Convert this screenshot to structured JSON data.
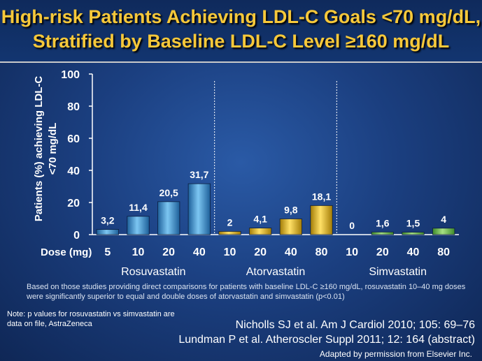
{
  "title": {
    "line1": "High-risk Patients Achieving LDL-C Goals <70 mg/dL,",
    "line2": "Stratified by Baseline LDL-C Level ≥160 mg/dL"
  },
  "chart_data": {
    "type": "bar",
    "ylabel_line1": "Patients (%) achieving LDL-C",
    "ylabel_line2": "<70 mg/dL",
    "xlabel": "Dose (mg)",
    "ylim": [
      0,
      100
    ],
    "yticks": [
      "0",
      "20",
      "40",
      "60",
      "80",
      "100"
    ],
    "groups": [
      {
        "name": "Rosuvastatin",
        "color": "#3e9bd6",
        "doses": [
          "5",
          "10",
          "20",
          "40"
        ],
        "values": [
          3.2,
          11.4,
          20.5,
          31.7
        ],
        "labels": [
          "3,2",
          "11,4",
          "20,5",
          "31,7"
        ]
      },
      {
        "name": "Atorvastatin",
        "color": "#e3b514",
        "doses": [
          "10",
          "20",
          "40",
          "80"
        ],
        "values": [
          2,
          4.1,
          9.8,
          18.1
        ],
        "labels": [
          "2",
          "4,1",
          "9,8",
          "18,1"
        ]
      },
      {
        "name": "Simvastatin",
        "color": "#7cc25a",
        "doses": [
          "10",
          "20",
          "40",
          "80"
        ],
        "values": [
          0,
          1.6,
          1.5,
          4
        ],
        "labels": [
          "0",
          "1,6",
          "1,5",
          "4"
        ]
      }
    ]
  },
  "footnote": "Based on those studies providing direct comparisons for patients with  baseline LDL-C ≥160 mg/dL, rosuvastatin 10–40 mg doses were significantly  superior to equal and double doses of atorvastatin  and simvastatin  (p<0.01)",
  "p_note": "Note: p values for rosuvastatin vs simvastatin are data on file, AstraZeneca",
  "references": [
    "Nicholls SJ et al. Am J Cardiol 2010; 105: 69–76",
    "Lundman P et al. Atheroscler Suppl 2011; 12: 164 (abstract)"
  ],
  "adapted": "Adapted by permission from Elsevier Inc."
}
